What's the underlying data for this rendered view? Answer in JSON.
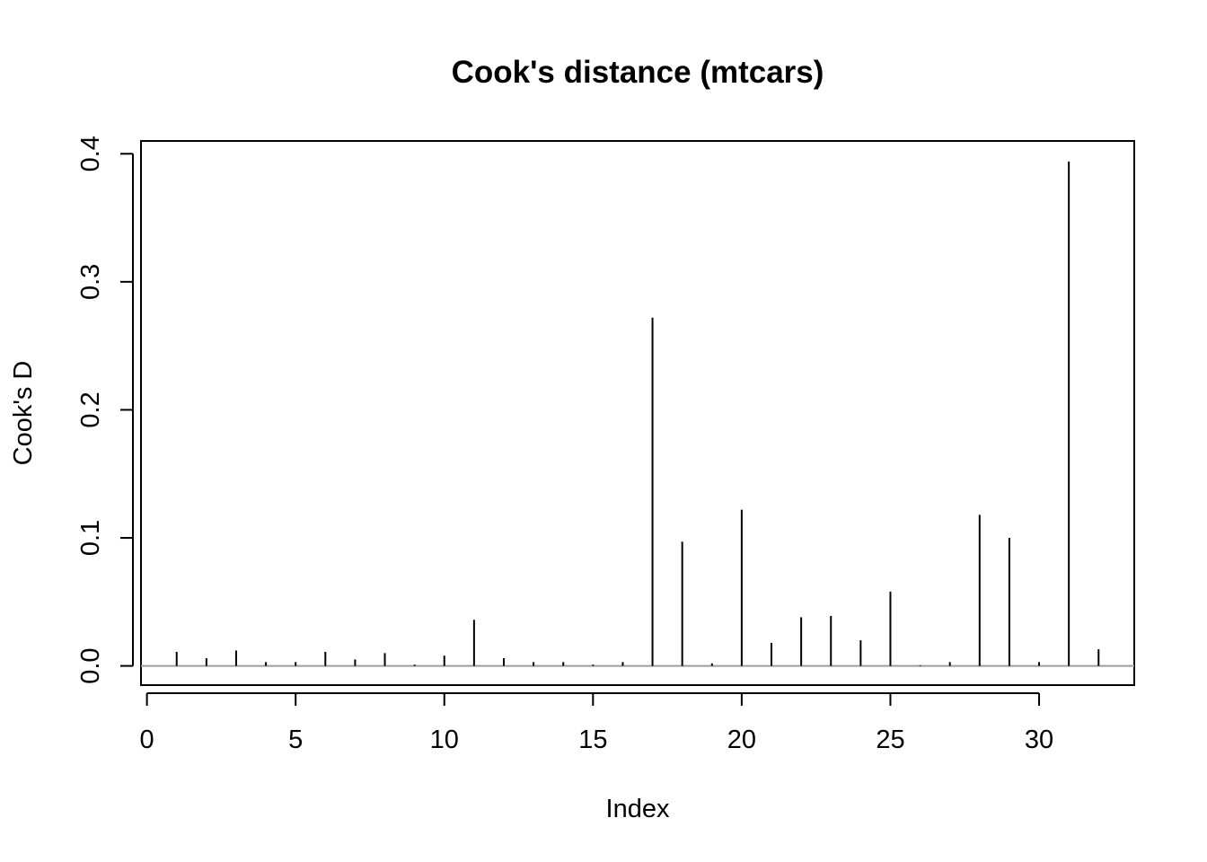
{
  "chart_data": {
    "type": "bar",
    "title": "Cook's distance (mtcars)",
    "xlabel": "Index",
    "ylabel": "Cook's D",
    "xlim": [
      -0.2,
      33.2
    ],
    "ylim": [
      -0.015,
      0.41
    ],
    "x_ticks": [
      0,
      5,
      10,
      15,
      20,
      25,
      30
    ],
    "y_ticks": [
      0.0,
      0.1,
      0.2,
      0.3,
      0.4
    ],
    "y_tick_labels": [
      "0.0",
      "0.1",
      "0.2",
      "0.3",
      "0.4"
    ],
    "reference_line": {
      "y": 0,
      "color": "#9e9e9e"
    },
    "bar_color": "#000000",
    "x": [
      1,
      2,
      3,
      4,
      5,
      6,
      7,
      8,
      9,
      10,
      11,
      12,
      13,
      14,
      15,
      16,
      17,
      18,
      19,
      20,
      21,
      22,
      23,
      24,
      25,
      26,
      27,
      28,
      29,
      30,
      31,
      32
    ],
    "values": [
      0.011,
      0.006,
      0.012,
      0.003,
      0.003,
      0.011,
      0.005,
      0.01,
      0.001,
      0.008,
      0.036,
      0.006,
      0.003,
      0.003,
      0.001,
      0.003,
      0.272,
      0.097,
      0.002,
      0.122,
      0.018,
      0.038,
      0.039,
      0.02,
      0.058,
      0.0005,
      0.003,
      0.118,
      0.1,
      0.003,
      0.394,
      0.013
    ],
    "grid": false,
    "legend": null
  }
}
